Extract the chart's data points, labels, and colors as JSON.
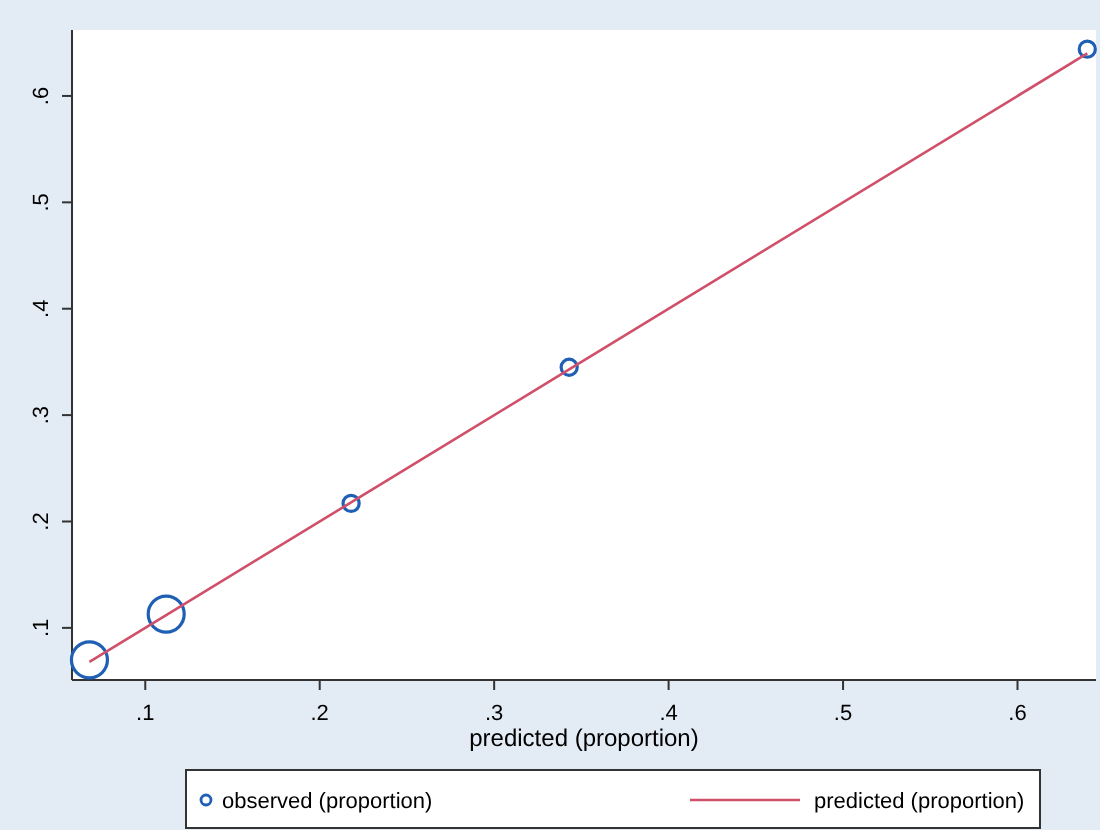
{
  "chart_data": {
    "type": "line",
    "xlabel": "predicted (proportion)",
    "xlim": [
      0.058,
      0.645
    ],
    "ylim": [
      0.051,
      0.662
    ],
    "xticks": [
      {
        "value": 0.1,
        "label": ".1"
      },
      {
        "value": 0.2,
        "label": ".2"
      },
      {
        "value": 0.3,
        "label": ".3"
      },
      {
        "value": 0.4,
        "label": ".4"
      },
      {
        "value": 0.5,
        "label": ".5"
      },
      {
        "value": 0.6,
        "label": ".6"
      }
    ],
    "yticks": [
      {
        "value": 0.1,
        "label": ".1"
      },
      {
        "value": 0.2,
        "label": ".2"
      },
      {
        "value": 0.3,
        "label": ".3"
      },
      {
        "value": 0.4,
        "label": ".4"
      },
      {
        "value": 0.5,
        "label": ".5"
      },
      {
        "value": 0.6,
        "label": ".6"
      }
    ],
    "legend": "bottom",
    "grid": false,
    "series": [
      {
        "name": "observed (proportion)",
        "type": "bubble",
        "color": "#1f5fb4",
        "x": [
          0.068,
          0.112,
          0.218,
          0.343,
          0.64
        ],
        "values": [
          0.07,
          0.113,
          0.217,
          0.345,
          0.644
        ],
        "sizes": [
          1,
          1,
          0.2,
          0.2,
          0.2
        ]
      },
      {
        "name": "predicted (proportion)",
        "color": "#d0506a",
        "x": [
          0.068,
          0.112,
          0.218,
          0.343,
          0.64
        ],
        "values": [
          0.068,
          0.112,
          0.218,
          0.343,
          0.64
        ]
      }
    ]
  }
}
